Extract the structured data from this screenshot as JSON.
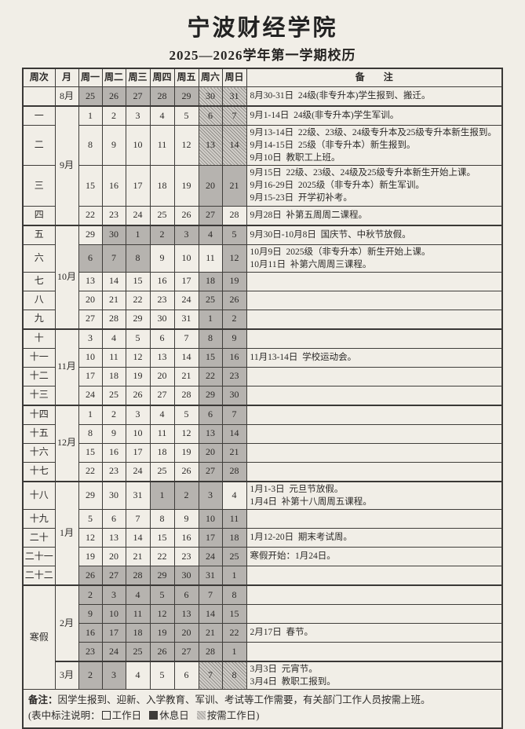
{
  "title": "宁波财经学院",
  "subtitle": "2025—2026学年第一学期校历",
  "colors": {
    "paper": "#f1eee7",
    "rest_day_fill": "#b6b3af",
    "as_needed_stripe": "#918e89",
    "border": "#3a3836"
  },
  "table": {
    "headers": [
      "周次",
      "月",
      "周一",
      "周二",
      "周三",
      "周四",
      "周五",
      "周六",
      "周日",
      "备　　注"
    ],
    "rows": [
      {
        "week": "",
        "month": "8月",
        "month_span": 1,
        "days": [
          [
            25,
            "g"
          ],
          [
            26,
            "g"
          ],
          [
            27,
            "g"
          ],
          [
            28,
            "g"
          ],
          [
            29,
            "g"
          ],
          [
            30,
            "h"
          ],
          [
            31,
            "h"
          ]
        ],
        "remark": [
          "8月30-31日  24级(非专升本)学生报到、搬迁。"
        ]
      },
      {
        "week": "一",
        "month": "9月",
        "month_span": 4,
        "sep": true,
        "days": [
          [
            1,
            "w"
          ],
          [
            2,
            "w"
          ],
          [
            3,
            "w"
          ],
          [
            4,
            "w"
          ],
          [
            5,
            "w"
          ],
          [
            6,
            "h"
          ],
          [
            7,
            "h"
          ]
        ],
        "remark": [
          "9月1-14日  24级(非专升本)学生军训。"
        ]
      },
      {
        "week": "二",
        "days": [
          [
            8,
            "w"
          ],
          [
            9,
            "w"
          ],
          [
            10,
            "w"
          ],
          [
            11,
            "w"
          ],
          [
            12,
            "w"
          ],
          [
            13,
            "h"
          ],
          [
            14,
            "h"
          ]
        ],
        "remark": [
          "9月13-14日  22级、23级、24级专升本及25级专升本新生报到。",
          "9月14-15日  25级（非专升本）新生报到。",
          "9月10日  教职工上班。"
        ]
      },
      {
        "week": "三",
        "days": [
          [
            15,
            "w"
          ],
          [
            16,
            "w"
          ],
          [
            17,
            "w"
          ],
          [
            18,
            "w"
          ],
          [
            19,
            "w"
          ],
          [
            20,
            "g"
          ],
          [
            21,
            "g"
          ]
        ],
        "remark": [
          "9月15日  22级、23级、24级及25级专升本新生开始上课。",
          "9月16-29日  2025级（非专升本）新生军训。",
          "9月15-23日  开学初补考。"
        ]
      },
      {
        "week": "四",
        "days": [
          [
            22,
            "w"
          ],
          [
            23,
            "w"
          ],
          [
            24,
            "w"
          ],
          [
            25,
            "w"
          ],
          [
            26,
            "w"
          ],
          [
            27,
            "g"
          ],
          [
            28,
            "w"
          ]
        ],
        "remark": [
          "9月28日  补第五周周二课程。"
        ]
      },
      {
        "week": "五",
        "month": "10月",
        "month_span": 5,
        "sep": true,
        "days": [
          [
            29,
            "w"
          ],
          [
            30,
            "g"
          ],
          [
            1,
            "g"
          ],
          [
            2,
            "g"
          ],
          [
            3,
            "g"
          ],
          [
            4,
            "g"
          ],
          [
            5,
            "g"
          ]
        ],
        "remark": [
          "9月30日-10月8日  国庆节、中秋节放假。"
        ]
      },
      {
        "week": "六",
        "days": [
          [
            6,
            "g"
          ],
          [
            7,
            "g"
          ],
          [
            8,
            "g"
          ],
          [
            9,
            "w"
          ],
          [
            10,
            "w"
          ],
          [
            11,
            "w"
          ],
          [
            12,
            "g"
          ]
        ],
        "remark": [
          "10月9日  2025级（非专升本）新生开始上课。",
          "10月11日  补第六周周三课程。"
        ]
      },
      {
        "week": "七",
        "days": [
          [
            13,
            "w"
          ],
          [
            14,
            "w"
          ],
          [
            15,
            "w"
          ],
          [
            16,
            "w"
          ],
          [
            17,
            "w"
          ],
          [
            18,
            "g"
          ],
          [
            19,
            "g"
          ]
        ],
        "remark": []
      },
      {
        "week": "八",
        "days": [
          [
            20,
            "w"
          ],
          [
            21,
            "w"
          ],
          [
            22,
            "w"
          ],
          [
            23,
            "w"
          ],
          [
            24,
            "w"
          ],
          [
            25,
            "g"
          ],
          [
            26,
            "g"
          ]
        ],
        "remark": []
      },
      {
        "week": "九",
        "days": [
          [
            27,
            "w"
          ],
          [
            28,
            "w"
          ],
          [
            29,
            "w"
          ],
          [
            30,
            "w"
          ],
          [
            31,
            "w"
          ],
          [
            1,
            "g"
          ],
          [
            2,
            "g"
          ]
        ],
        "remark": []
      },
      {
        "week": "十",
        "month": "11月",
        "month_span": 4,
        "sep": true,
        "days": [
          [
            3,
            "w"
          ],
          [
            4,
            "w"
          ],
          [
            5,
            "w"
          ],
          [
            6,
            "w"
          ],
          [
            7,
            "w"
          ],
          [
            8,
            "g"
          ],
          [
            9,
            "g"
          ]
        ],
        "remark": []
      },
      {
        "week": "十一",
        "days": [
          [
            10,
            "w"
          ],
          [
            11,
            "w"
          ],
          [
            12,
            "w"
          ],
          [
            13,
            "w"
          ],
          [
            14,
            "w"
          ],
          [
            15,
            "g"
          ],
          [
            16,
            "g"
          ]
        ],
        "remark": [
          "11月13-14日  学校运动会。"
        ]
      },
      {
        "week": "十二",
        "days": [
          [
            17,
            "w"
          ],
          [
            18,
            "w"
          ],
          [
            19,
            "w"
          ],
          [
            20,
            "w"
          ],
          [
            21,
            "w"
          ],
          [
            22,
            "g"
          ],
          [
            23,
            "g"
          ]
        ],
        "remark": []
      },
      {
        "week": "十三",
        "days": [
          [
            24,
            "w"
          ],
          [
            25,
            "w"
          ],
          [
            26,
            "w"
          ],
          [
            27,
            "w"
          ],
          [
            28,
            "w"
          ],
          [
            29,
            "g"
          ],
          [
            30,
            "g"
          ]
        ],
        "remark": []
      },
      {
        "week": "十四",
        "month": "12月",
        "month_span": 4,
        "sep": true,
        "days": [
          [
            1,
            "w"
          ],
          [
            2,
            "w"
          ],
          [
            3,
            "w"
          ],
          [
            4,
            "w"
          ],
          [
            5,
            "w"
          ],
          [
            6,
            "g"
          ],
          [
            7,
            "g"
          ]
        ],
        "remark": []
      },
      {
        "week": "十五",
        "days": [
          [
            8,
            "w"
          ],
          [
            9,
            "w"
          ],
          [
            10,
            "w"
          ],
          [
            11,
            "w"
          ],
          [
            12,
            "w"
          ],
          [
            13,
            "g"
          ],
          [
            14,
            "g"
          ]
        ],
        "remark": []
      },
      {
        "week": "十六",
        "days": [
          [
            15,
            "w"
          ],
          [
            16,
            "w"
          ],
          [
            17,
            "w"
          ],
          [
            18,
            "w"
          ],
          [
            19,
            "w"
          ],
          [
            20,
            "g"
          ],
          [
            21,
            "g"
          ]
        ],
        "remark": []
      },
      {
        "week": "十七",
        "days": [
          [
            22,
            "w"
          ],
          [
            23,
            "w"
          ],
          [
            24,
            "w"
          ],
          [
            25,
            "w"
          ],
          [
            26,
            "w"
          ],
          [
            27,
            "g"
          ],
          [
            28,
            "g"
          ]
        ],
        "remark": []
      },
      {
        "week": "十八",
        "month": "1月",
        "month_span": 5,
        "sep": true,
        "days": [
          [
            29,
            "w"
          ],
          [
            30,
            "w"
          ],
          [
            31,
            "w"
          ],
          [
            1,
            "g"
          ],
          [
            2,
            "g"
          ],
          [
            3,
            "g"
          ],
          [
            4,
            "w"
          ]
        ],
        "remark": [
          "1月1-3日  元旦节放假。",
          "1月4日  补第十八周周五课程。"
        ]
      },
      {
        "week": "十九",
        "days": [
          [
            5,
            "w"
          ],
          [
            6,
            "w"
          ],
          [
            7,
            "w"
          ],
          [
            8,
            "w"
          ],
          [
            9,
            "w"
          ],
          [
            10,
            "g"
          ],
          [
            11,
            "g"
          ]
        ],
        "remark": []
      },
      {
        "week": "二十",
        "days": [
          [
            12,
            "w"
          ],
          [
            13,
            "w"
          ],
          [
            14,
            "w"
          ],
          [
            15,
            "w"
          ],
          [
            16,
            "w"
          ],
          [
            17,
            "g"
          ],
          [
            18,
            "g"
          ]
        ],
        "remark": [
          "1月12-20日  期末考试周。"
        ]
      },
      {
        "week": "二十一",
        "days": [
          [
            19,
            "w"
          ],
          [
            20,
            "w"
          ],
          [
            21,
            "w"
          ],
          [
            22,
            "w"
          ],
          [
            23,
            "w"
          ],
          [
            24,
            "g"
          ],
          [
            25,
            "g"
          ]
        ],
        "remark": [
          "寒假开始：1月24日。"
        ]
      },
      {
        "week": "二十二",
        "days": [
          [
            26,
            "g"
          ],
          [
            27,
            "g"
          ],
          [
            28,
            "g"
          ],
          [
            29,
            "g"
          ],
          [
            30,
            "g"
          ],
          [
            31,
            "g"
          ],
          [
            1,
            "g"
          ]
        ],
        "remark": []
      },
      {
        "week": "寒假",
        "week_span": 5,
        "month": "2月",
        "month_span": 4,
        "sep": true,
        "days": [
          [
            2,
            "g"
          ],
          [
            3,
            "g"
          ],
          [
            4,
            "g"
          ],
          [
            5,
            "g"
          ],
          [
            6,
            "g"
          ],
          [
            7,
            "g"
          ],
          [
            8,
            "g"
          ]
        ],
        "remark": []
      },
      {
        "days": [
          [
            9,
            "g"
          ],
          [
            10,
            "g"
          ],
          [
            11,
            "g"
          ],
          [
            12,
            "g"
          ],
          [
            13,
            "g"
          ],
          [
            14,
            "g"
          ],
          [
            15,
            "g"
          ]
        ],
        "remark": []
      },
      {
        "days": [
          [
            16,
            "g"
          ],
          [
            17,
            "g"
          ],
          [
            18,
            "g"
          ],
          [
            19,
            "g"
          ],
          [
            20,
            "g"
          ],
          [
            21,
            "g"
          ],
          [
            22,
            "g"
          ]
        ],
        "remark": [
          "2月17日  春节。"
        ]
      },
      {
        "days": [
          [
            23,
            "g"
          ],
          [
            24,
            "g"
          ],
          [
            25,
            "g"
          ],
          [
            26,
            "g"
          ],
          [
            27,
            "g"
          ],
          [
            28,
            "g"
          ],
          [
            1,
            "g"
          ]
        ],
        "remark": []
      },
      {
        "month": "3月",
        "month_span": 1,
        "sep": true,
        "days": [
          [
            2,
            "g"
          ],
          [
            3,
            "g"
          ],
          [
            4,
            "w"
          ],
          [
            5,
            "w"
          ],
          [
            6,
            "w"
          ],
          [
            7,
            "h"
          ],
          [
            8,
            "h"
          ]
        ],
        "remark": [
          "3月3日  元宵节。",
          "3月4日  教职工报到。"
        ]
      }
    ]
  },
  "footer": {
    "note_prefix": "备注：",
    "note_text": "因学生报到、迎新、入学教育、军训、考试等工作需要，有关部门工作人员按需上班。",
    "legend_prefix": "(表中标注说明：",
    "legend_work": "工作日",
    "legend_rest": "休息日",
    "legend_asneeded": "按需工作日",
    "legend_suffix": ")"
  }
}
